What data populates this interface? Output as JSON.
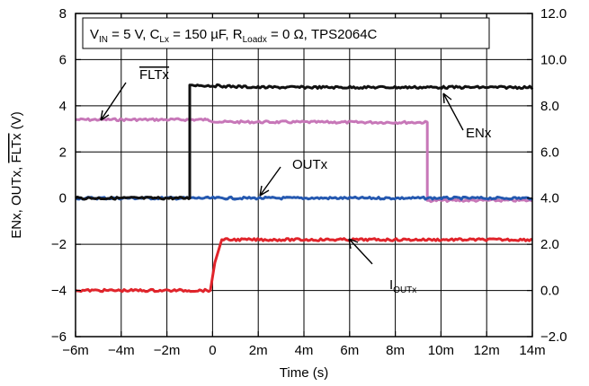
{
  "chart_data": {
    "type": "line",
    "title_parts": {
      "vin_main": "V",
      "vin_sub": "IN",
      "vin_rest": " = 5 V, C",
      "clx_sub": "Lx",
      "clx_rest": " = 150 µF, R",
      "rload_sub": "Loadx",
      "rload_rest": " = 0 Ω, TPS2064C"
    },
    "xlabel": "Time (s)",
    "ylabel_left_prefix": "ENx, OUTx, ",
    "ylabel_left_overline": "FLTx",
    "ylabel_left_suffix": " (V)",
    "x_ticks": [
      "−6m",
      "−4m",
      "−2m",
      "0",
      "2m",
      "4m",
      "6m",
      "8m",
      "10m",
      "12m",
      "14m"
    ],
    "x_tick_values": [
      -0.006,
      -0.004,
      -0.002,
      0,
      0.002,
      0.004,
      0.006,
      0.008,
      0.01,
      0.012,
      0.014
    ],
    "xlim": [
      -0.006,
      0.014
    ],
    "y_left_ticks": [
      "−6",
      "−4",
      "−2",
      "0",
      "2",
      "4",
      "6",
      "8"
    ],
    "y_left_tick_values": [
      -6,
      -4,
      -2,
      0,
      2,
      4,
      6,
      8
    ],
    "ylim_left": [
      -6,
      8
    ],
    "y_right_ticks": [
      "−2.0",
      "0.0",
      "2.0",
      "4.0",
      "6.0",
      "8.0",
      "10.0",
      "12.0"
    ],
    "y_right_tick_values": [
      -2,
      0,
      2,
      4,
      6,
      8,
      10,
      12
    ],
    "ylim_right": [
      -2,
      12
    ],
    "grid": true,
    "series": [
      {
        "name": "ENx",
        "color": "#111111",
        "axis": "left",
        "x": [
          -0.006,
          -0.001,
          -0.001,
          -0.0009,
          0.0005,
          0.002,
          0.014
        ],
        "y": [
          0,
          0,
          4.9,
          4.9,
          4.85,
          4.8,
          4.8
        ]
      },
      {
        "name": "FLTx",
        "color": "#c777b8",
        "axis": "left",
        "x": [
          -0.006,
          -0.0003,
          0.0003,
          0.009,
          0.0094,
          0.0094,
          0.014
        ],
        "y": [
          3.4,
          3.4,
          3.3,
          3.28,
          3.28,
          -0.1,
          -0.1
        ]
      },
      {
        "name": "OUTx",
        "color": "#2458b0",
        "axis": "left",
        "x": [
          -0.006,
          -0.001,
          0.014
        ],
        "y": [
          0,
          0,
          0
        ]
      },
      {
        "name": "IOUTx",
        "color": "#e0242b",
        "axis": "right",
        "x": [
          -0.006,
          -0.0001,
          0.0001,
          0.0004,
          0.014
        ],
        "y": [
          0,
          0,
          1.2,
          2.2,
          2.2
        ]
      }
    ],
    "annotations": [
      {
        "label": "FLTx",
        "overline": true,
        "sub": ""
      },
      {
        "label": "ENx",
        "overline": false,
        "sub": ""
      },
      {
        "label": "OUTx",
        "overline": false,
        "sub": ""
      },
      {
        "label": "I",
        "overline": false,
        "sub": "OUTx"
      }
    ]
  }
}
